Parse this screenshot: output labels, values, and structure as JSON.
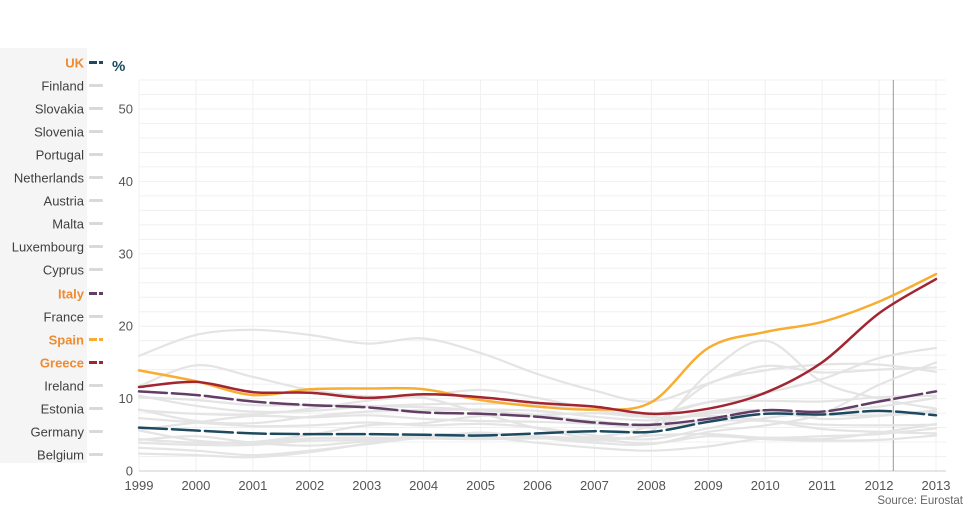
{
  "chart": {
    "unit_label": "%",
    "source": "Source: Eurostat",
    "colors": {
      "sidebar_background": "#f5f5f5",
      "label_text": "#3f3f3f",
      "highlight_label_text": "#ee8b33",
      "gray_swatch": "#d9d9d9",
      "grid": "#f0f0f0",
      "axis_line": "#cccccc",
      "tick_text": "#555555",
      "marker_line": "#999999",
      "gray_series": "#e4e4e4",
      "unit_label": "#1d4a5f"
    }
  },
  "chart_data": {
    "type": "line",
    "title": "",
    "xlabel": "",
    "ylabel": "%",
    "x": [
      1999,
      2000,
      2001,
      2002,
      2003,
      2004,
      2005,
      2006,
      2007,
      2008,
      2009,
      2010,
      2011,
      2012,
      2013
    ],
    "x_tick_labels": [
      "1999",
      "2000",
      "2001",
      "2002",
      "2003",
      "2004",
      "2005",
      "2006",
      "2007",
      "2008",
      "2009",
      "2010",
      "2011",
      "2012",
      "2013"
    ],
    "y_ticks": [
      0,
      10,
      20,
      30,
      40,
      50
    ],
    "ylim": [
      0,
      54
    ],
    "xlim": [
      1999,
      2013
    ],
    "y_grid_step": 2,
    "grid": true,
    "legend_position": "left",
    "marker_line_x": 2012.25,
    "series": [
      {
        "name": "UK",
        "highlighted": true,
        "color": "#1d4a5f",
        "dash": "28 5",
        "values": [
          6.0,
          5.6,
          5.2,
          5.1,
          5.1,
          5.0,
          4.9,
          5.2,
          5.5,
          5.4,
          6.8,
          7.9,
          7.8,
          8.3,
          7.7
        ]
      },
      {
        "name": "Finland",
        "highlighted": false,
        "color": "#e4e4e4",
        "dash": "",
        "values": [
          10.2,
          9.8,
          9.1,
          9.1,
          9.0,
          8.8,
          8.4,
          7.7,
          6.9,
          6.4,
          8.2,
          8.4,
          7.8,
          7.7,
          8.1
        ]
      },
      {
        "name": "Slovakia",
        "highlighted": false,
        "color": "#e4e4e4",
        "dash": "",
        "values": [
          15.9,
          18.8,
          19.5,
          18.8,
          17.6,
          18.3,
          16.3,
          13.4,
          11.1,
          9.6,
          12.1,
          14.5,
          13.6,
          14.0,
          14.3
        ]
      },
      {
        "name": "Slovenia",
        "highlighted": false,
        "color": "#e4e4e4",
        "dash": "",
        "values": [
          7.3,
          6.7,
          6.2,
          6.3,
          6.7,
          6.3,
          6.5,
          6.0,
          4.9,
          4.4,
          5.9,
          7.3,
          8.2,
          8.9,
          10.1
        ]
      },
      {
        "name": "Portugal",
        "highlighted": false,
        "color": "#e4e4e4",
        "dash": "",
        "values": [
          4.4,
          3.9,
          4.0,
          5.0,
          6.3,
          6.6,
          7.6,
          7.7,
          8.0,
          7.6,
          9.5,
          10.8,
          12.7,
          15.6,
          17.0
        ]
      },
      {
        "name": "Netherlands",
        "highlighted": false,
        "color": "#e4e4e4",
        "dash": "",
        "values": [
          3.2,
          2.8,
          2.2,
          2.8,
          3.7,
          4.6,
          4.7,
          3.9,
          3.2,
          2.8,
          3.4,
          4.5,
          4.4,
          5.3,
          6.5
        ]
      },
      {
        "name": "Austria",
        "highlighted": false,
        "color": "#e4e4e4",
        "dash": "",
        "values": [
          3.9,
          3.6,
          3.6,
          4.2,
          4.3,
          4.9,
          5.2,
          4.8,
          4.4,
          3.8,
          4.8,
          4.4,
          4.2,
          4.3,
          4.9
        ]
      },
      {
        "name": "Malta",
        "highlighted": false,
        "color": "#e4e4e4",
        "dash": "",
        "values": [
          5.7,
          6.7,
          7.6,
          7.4,
          7.7,
          7.2,
          6.9,
          6.8,
          6.5,
          6.0,
          6.9,
          6.9,
          6.4,
          6.3,
          6.4
        ]
      },
      {
        "name": "Luxembourg",
        "highlighted": false,
        "color": "#e4e4e4",
        "dash": "",
        "values": [
          2.4,
          2.2,
          1.9,
          2.6,
          3.8,
          5.0,
          4.6,
          4.6,
          4.2,
          4.9,
          5.1,
          4.6,
          4.8,
          5.1,
          5.9
        ]
      },
      {
        "name": "Cyprus",
        "highlighted": false,
        "color": "#e4e4e4",
        "dash": "",
        "values": [
          4.3,
          4.8,
          3.9,
          3.5,
          4.1,
          4.6,
          5.3,
          4.6,
          3.9,
          3.7,
          5.4,
          6.3,
          7.9,
          11.9,
          15.0
        ]
      },
      {
        "name": "Italy",
        "highlighted": true,
        "color": "#623e66",
        "dash": "28 5",
        "values": [
          11.0,
          10.5,
          9.6,
          9.1,
          8.8,
          8.1,
          7.9,
          7.5,
          6.7,
          6.4,
          7.2,
          8.4,
          8.2,
          9.6,
          11.0
        ]
      },
      {
        "name": "France",
        "highlighted": false,
        "color": "#e4e4e4",
        "dash": "",
        "values": [
          10.4,
          9.0,
          8.2,
          8.3,
          8.9,
          9.2,
          9.3,
          9.2,
          8.4,
          7.8,
          9.5,
          9.7,
          9.6,
          10.2,
          10.4
        ]
      },
      {
        "name": "Spain",
        "highlighted": true,
        "color": "#f8ad32",
        "dash": "",
        "values": [
          13.9,
          12.4,
          10.5,
          11.3,
          11.4,
          11.3,
          9.8,
          8.9,
          8.5,
          9.5,
          17.0,
          19.2,
          20.6,
          23.4,
          27.2
        ]
      },
      {
        "name": "Greece",
        "highlighted": true,
        "color": "#a22532",
        "dash": "",
        "values": [
          11.6,
          12.3,
          10.9,
          10.8,
          10.1,
          10.6,
          10.2,
          9.4,
          8.9,
          7.9,
          8.6,
          10.8,
          15.0,
          21.8,
          26.5
        ]
      },
      {
        "name": "Ireland",
        "highlighted": false,
        "color": "#e4e4e4",
        "dash": "",
        "values": [
          5.6,
          4.2,
          3.9,
          4.5,
          4.6,
          4.5,
          4.4,
          4.5,
          4.7,
          6.4,
          12.0,
          13.9,
          14.7,
          14.7,
          13.7
        ]
      },
      {
        "name": "Estonia",
        "highlighted": false,
        "color": "#e4e4e4",
        "dash": "",
        "values": [
          11.7,
          14.6,
          13.0,
          11.2,
          10.3,
          10.1,
          8.0,
          5.9,
          4.6,
          5.5,
          13.5,
          18.0,
          12.3,
          10.0,
          8.6
        ]
      },
      {
        "name": "Germany",
        "highlighted": false,
        "color": "#e4e4e4",
        "dash": "",
        "values": [
          8.4,
          7.9,
          7.8,
          8.6,
          9.7,
          10.4,
          11.2,
          10.1,
          8.5,
          7.4,
          7.6,
          7.0,
          5.8,
          5.4,
          5.2
        ]
      },
      {
        "name": "Belgium",
        "highlighted": false,
        "color": "#e4e4e4",
        "dash": "",
        "values": [
          8.5,
          6.9,
          6.6,
          7.5,
          8.2,
          8.4,
          8.5,
          8.3,
          7.5,
          7.0,
          7.9,
          8.3,
          7.2,
          7.6,
          8.4
        ]
      }
    ]
  }
}
